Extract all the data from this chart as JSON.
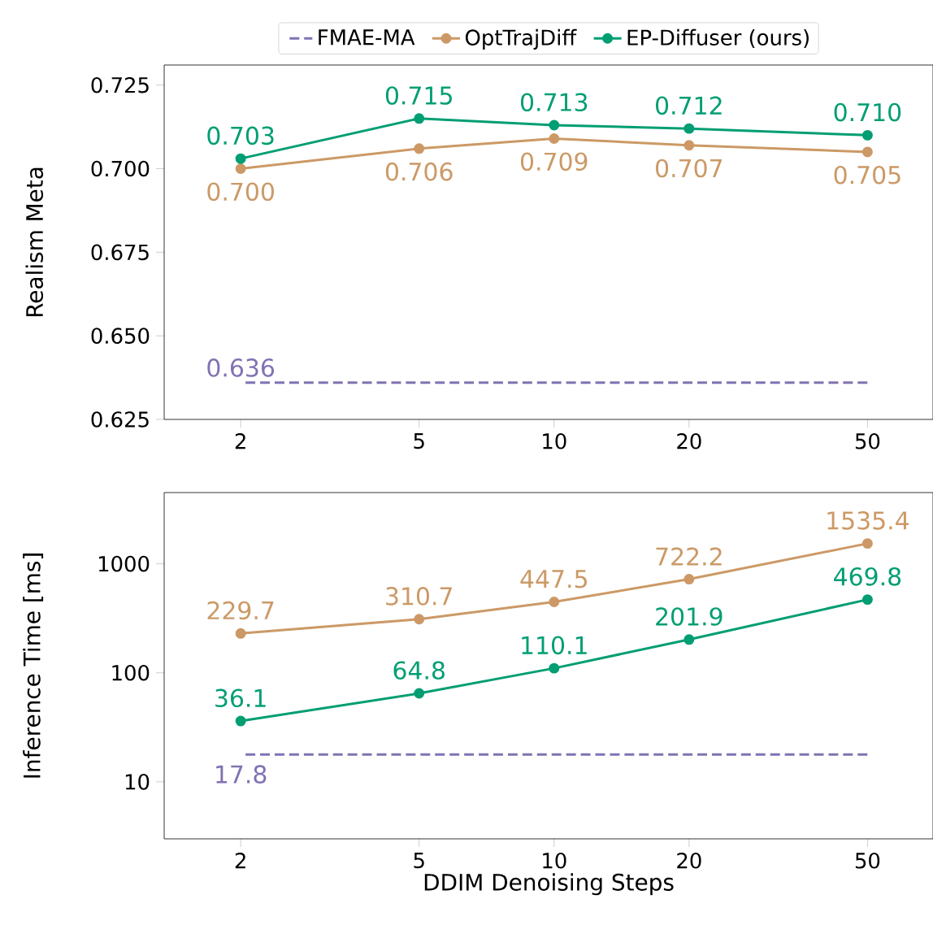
{
  "chart_data": [
    {
      "type": "line",
      "ylabel": "Realism Meta",
      "log": "x",
      "legend": "top",
      "xlim": [
        1.35,
        70
      ],
      "xticks": [
        2,
        5,
        10,
        20,
        50
      ],
      "ylim": [
        0.625,
        0.731
      ],
      "yticks": [
        0.625,
        {
          "value": 0.65,
          "label": "0.650"
        },
        0.675,
        {
          "value": 0.7,
          "label": "0.700"
        },
        0.725
      ],
      "series": [
        {
          "name": "FMAE-MA",
          "color": "#8172b3",
          "line_style": "dashed",
          "marker": "none",
          "x": [
            2,
            50
          ],
          "values": [
            0.636,
            0.636
          ],
          "value_labels": [
            "0.636",
            null
          ]
        },
        {
          "name": "OptTrajDiff",
          "color": "#cc9966",
          "marker": "circle",
          "x": [
            2,
            5,
            10,
            20,
            50
          ],
          "values": [
            0.7,
            0.706,
            0.709,
            0.707,
            0.705
          ],
          "value_labels": [
            "0.700",
            "0.706",
            "0.709",
            "0.707",
            "0.705"
          ]
        },
        {
          "name": "EP-Diffuser (ours)",
          "color": "#009e73",
          "marker": "circle",
          "x": [
            2,
            5,
            10,
            20,
            50
          ],
          "values": [
            0.703,
            0.715,
            0.713,
            0.712,
            0.71
          ],
          "value_labels": [
            "0.703",
            "0.715",
            "0.713",
            "0.712",
            "0.710"
          ]
        }
      ]
    },
    {
      "type": "line",
      "ylabel": "Inference Time [ms]",
      "xlabel": "DDIM Denoising Steps",
      "log": "xy",
      "xlim": [
        1.35,
        70
      ],
      "xticks": [
        2,
        5,
        10,
        20,
        50
      ],
      "ylim": [
        3,
        4500
      ],
      "yticks": [
        10,
        100,
        1000
      ],
      "series": [
        {
          "color": "#8172b3",
          "line_style": "dashed",
          "marker": "none",
          "x": [
            2,
            50
          ],
          "values": [
            17.8,
            17.8
          ],
          "value_labels": [
            "17.8",
            null
          ]
        },
        {
          "color": "#cc9966",
          "marker": "circle",
          "x": [
            2,
            5,
            10,
            20,
            50
          ],
          "values": [
            229.7,
            310.7,
            447.5,
            722.2,
            1535.4
          ],
          "value_labels": [
            "229.7",
            "310.7",
            "447.5",
            "722.2",
            "1535.4"
          ]
        },
        {
          "color": "#009e73",
          "marker": "circle",
          "x": [
            2,
            5,
            10,
            20,
            50
          ],
          "values": [
            36.1,
            64.8,
            110.1,
            201.9,
            469.8
          ],
          "value_labels": [
            "36.1",
            "64.8",
            "110.1",
            "201.9",
            "469.8"
          ]
        }
      ]
    }
  ]
}
